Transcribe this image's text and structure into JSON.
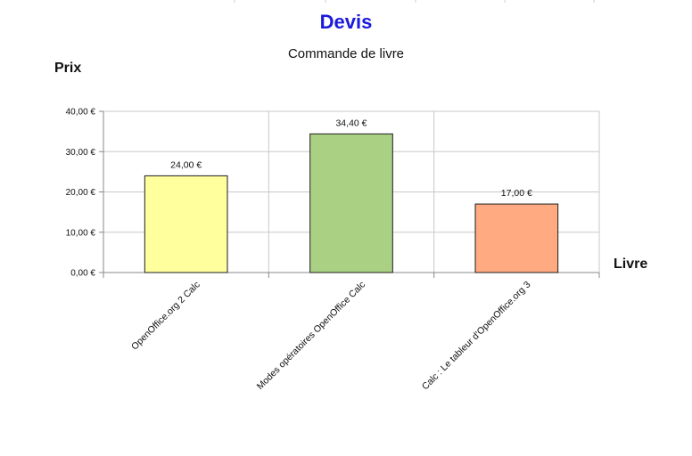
{
  "chart_data": {
    "type": "bar",
    "title": "Devis",
    "subtitle": "Commande de livre",
    "ylabel": "Prix",
    "xlabel": "Livre",
    "categories": [
      "OpenOffice.org 2 Calc",
      "Modes opératoires OpenOffice Calc",
      "Calc : Le tableur d'OpenOffice.org 3"
    ],
    "values": [
      24.0,
      34.4,
      17.0
    ],
    "value_labels": [
      "24,00 €",
      "34,40 €",
      "17,00 €"
    ],
    "y_ticks": [
      0,
      10,
      20,
      30,
      40
    ],
    "y_tick_labels": [
      "0,00 €",
      "10,00 €",
      "20,00 €",
      "30,00 €",
      "40,00 €"
    ],
    "ylim": [
      0,
      40
    ],
    "grid": true,
    "legend": "none",
    "bar_colors": [
      "#ffff9e",
      "#aad083",
      "#ffaa80"
    ],
    "title_color": "#1a1adc",
    "grid_color": "#c8c8c8"
  }
}
